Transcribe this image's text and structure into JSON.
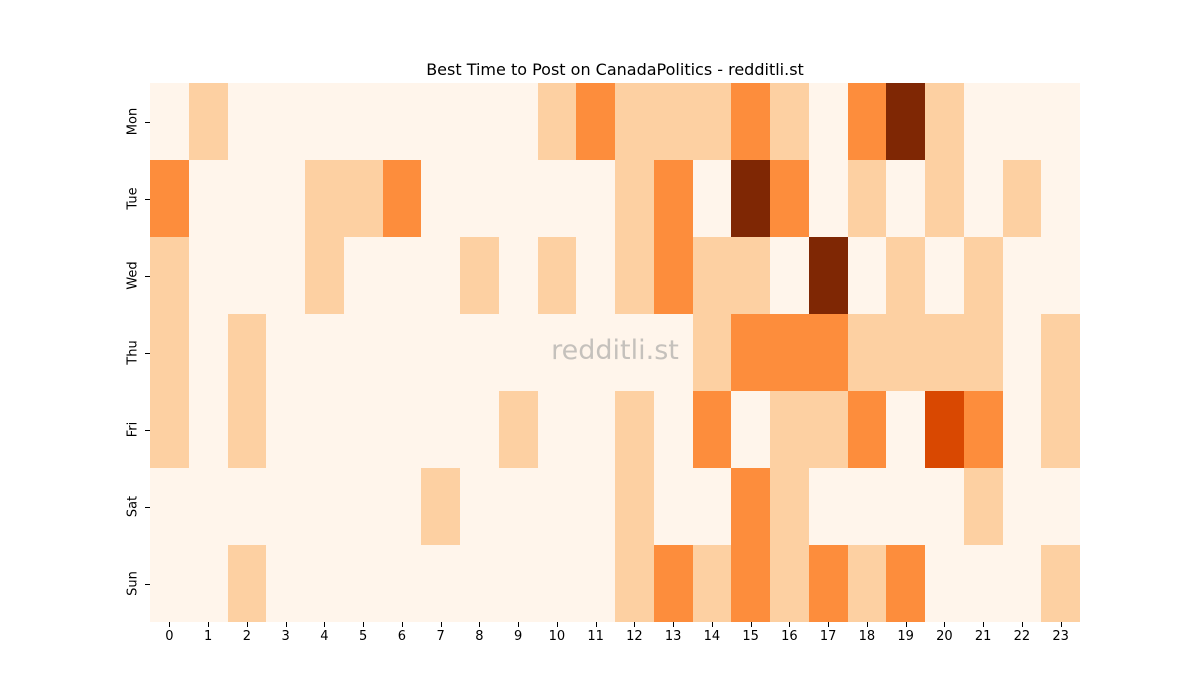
{
  "chart_data": {
    "type": "heatmap",
    "title": "Best Time to Post on CanadaPolitics - redditli.st",
    "xlabel": "",
    "ylabel": "",
    "x": [
      "0",
      "1",
      "2",
      "3",
      "4",
      "5",
      "6",
      "7",
      "8",
      "9",
      "10",
      "11",
      "12",
      "13",
      "14",
      "15",
      "16",
      "17",
      "18",
      "19",
      "20",
      "21",
      "22",
      "23"
    ],
    "y": [
      "Mon",
      "Tue",
      "Wed",
      "Thu",
      "Fri",
      "Sat",
      "Sun"
    ],
    "colormap": "Oranges",
    "level_colors": [
      "#fff5eb",
      "#fdd0a2",
      "#fd8d3c",
      "#d94801",
      "#7f2704"
    ],
    "values": [
      [
        0,
        1,
        0,
        0,
        0,
        0,
        0,
        0,
        0,
        0,
        1,
        2,
        1,
        1,
        1,
        2,
        1,
        0,
        2,
        4,
        1,
        0,
        0,
        0
      ],
      [
        2,
        0,
        0,
        0,
        1,
        1,
        2,
        0,
        0,
        0,
        0,
        0,
        1,
        2,
        0,
        4,
        2,
        0,
        1,
        0,
        1,
        0,
        1,
        0
      ],
      [
        1,
        0,
        0,
        0,
        1,
        0,
        0,
        0,
        1,
        0,
        1,
        0,
        1,
        2,
        1,
        1,
        0,
        4,
        0,
        1,
        0,
        1,
        0,
        0
      ],
      [
        1,
        0,
        1,
        0,
        0,
        0,
        0,
        0,
        0,
        0,
        0,
        0,
        0,
        0,
        1,
        2,
        2,
        2,
        1,
        1,
        1,
        1,
        0,
        1
      ],
      [
        1,
        0,
        1,
        0,
        0,
        0,
        0,
        0,
        0,
        1,
        0,
        0,
        1,
        0,
        2,
        0,
        1,
        1,
        2,
        0,
        3,
        2,
        0,
        1
      ],
      [
        0,
        0,
        0,
        0,
        0,
        0,
        0,
        1,
        0,
        0,
        0,
        0,
        1,
        0,
        0,
        2,
        1,
        0,
        0,
        0,
        0,
        1,
        0,
        0
      ],
      [
        0,
        0,
        1,
        0,
        0,
        0,
        0,
        0,
        0,
        0,
        0,
        0,
        1,
        2,
        1,
        2,
        1,
        2,
        1,
        2,
        0,
        0,
        0,
        1
      ]
    ],
    "grid": false,
    "legend": "none",
    "watermark": "redditli.st"
  }
}
